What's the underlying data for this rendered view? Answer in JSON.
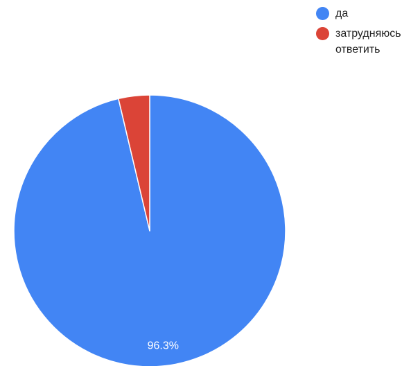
{
  "chart_data": {
    "type": "pie",
    "title": "",
    "slices": [
      {
        "label": "да",
        "value": 96.3,
        "color": "#4285F4",
        "data_label": "96.3%"
      },
      {
        "label": "затрудняюсь ответить",
        "value": 3.7,
        "color": "#DB4437",
        "data_label": ""
      }
    ],
    "start_angle_deg": 0,
    "direction": "clockwise",
    "legend_position": "top-right"
  }
}
